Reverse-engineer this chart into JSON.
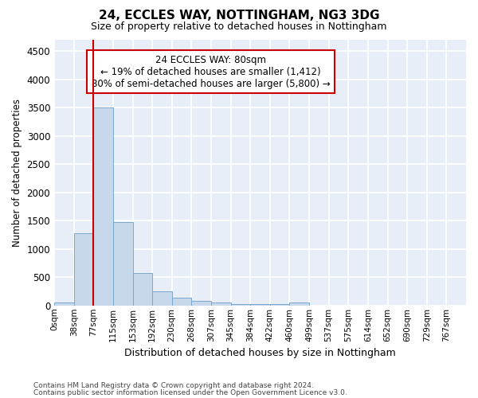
{
  "title1": "24, ECCLES WAY, NOTTINGHAM, NG3 3DG",
  "title2": "Size of property relative to detached houses in Nottingham",
  "xlabel": "Distribution of detached houses by size in Nottingham",
  "ylabel": "Number of detached properties",
  "bin_labels": [
    "0sqm",
    "38sqm",
    "77sqm",
    "115sqm",
    "153sqm",
    "192sqm",
    "230sqm",
    "268sqm",
    "307sqm",
    "345sqm",
    "384sqm",
    "422sqm",
    "460sqm",
    "499sqm",
    "537sqm",
    "575sqm",
    "614sqm",
    "652sqm",
    "690sqm",
    "729sqm",
    "767sqm"
  ],
  "bar_heights": [
    50,
    1280,
    3500,
    1480,
    580,
    250,
    140,
    80,
    50,
    30,
    30,
    30,
    50,
    0,
    0,
    0,
    0,
    0,
    0,
    0,
    0
  ],
  "bar_color": "#c8d8eb",
  "bar_edge_color": "#7aa8cc",
  "property_line_color": "#cc0000",
  "annotation_text": "24 ECCLES WAY: 80sqm\n← 19% of detached houses are smaller (1,412)\n80% of semi-detached houses are larger (5,800) →",
  "annotation_box_color": "#ffffff",
  "annotation_box_edge": "#cc0000",
  "ylim": [
    0,
    4700
  ],
  "yticks": [
    0,
    500,
    1000,
    1500,
    2000,
    2500,
    3000,
    3500,
    4000,
    4500
  ],
  "background_color": "#e8eef8",
  "grid_color": "#ffffff",
  "footer1": "Contains HM Land Registry data © Crown copyright and database right 2024.",
  "footer2": "Contains public sector information licensed under the Open Government Licence v3.0."
}
